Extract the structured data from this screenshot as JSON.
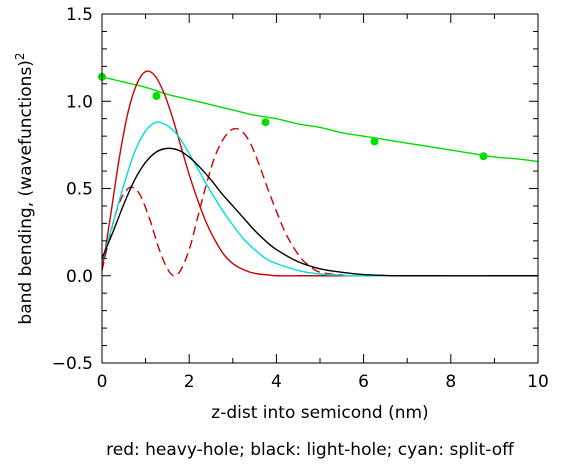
{
  "chart_data": {
    "type": "line",
    "xlabel": "z-dist into semicond (nm)",
    "ylabel_main": "band bending, (wavefunctions)",
    "ylabel_sup": "2",
    "caption": "red: heavy-hole; black: light-hole; cyan: split-off",
    "xlim": [
      0,
      10
    ],
    "ylim": [
      -0.5,
      1.5
    ],
    "x_ticks": [
      0,
      2,
      4,
      6,
      8,
      10
    ],
    "x_tick_labels": [
      "0",
      "2",
      "4",
      "6",
      "8",
      "10"
    ],
    "y_ticks": [
      -0.5,
      0.0,
      0.5,
      1.0,
      1.5
    ],
    "y_tick_labels": [
      "−0.5",
      "0.0",
      "0.5",
      "1.0",
      "1.5"
    ],
    "grid": false,
    "series": [
      {
        "color": "#00dd00",
        "dash": "solid",
        "x": [
          0,
          0.5,
          1,
          1.5,
          2,
          2.5,
          3,
          3.5,
          4,
          4.5,
          5,
          5.5,
          6,
          6.5,
          7,
          7.5,
          8,
          8.5,
          9,
          9.5,
          10
        ],
        "y": [
          1.14,
          1.11,
          1.08,
          1.04,
          1.01,
          0.98,
          0.95,
          0.92,
          0.9,
          0.87,
          0.85,
          0.82,
          0.8,
          0.78,
          0.76,
          0.74,
          0.72,
          0.7,
          0.68,
          0.67,
          0.655
        ]
      },
      {
        "color": "#cc0000",
        "dash": "solid",
        "x": [
          0,
          0.2,
          0.4,
          0.6,
          0.8,
          1.0,
          1.2,
          1.4,
          1.6,
          1.8,
          2.0,
          2.2,
          2.4,
          2.6,
          2.8,
          3.0,
          3.2,
          3.4,
          3.6,
          3.8,
          4.0,
          4.5,
          5.0,
          10
        ],
        "y": [
          0.03,
          0.35,
          0.68,
          0.94,
          1.1,
          1.17,
          1.15,
          1.06,
          0.92,
          0.75,
          0.58,
          0.43,
          0.3,
          0.2,
          0.12,
          0.07,
          0.04,
          0.02,
          0.01,
          0.005,
          0.0,
          0.0,
          0.0,
          0.0
        ]
      },
      {
        "color": "#cc0000",
        "dash": "dashed",
        "x": [
          0,
          0.2,
          0.4,
          0.6,
          0.75,
          0.9,
          1.1,
          1.3,
          1.5,
          1.65,
          1.8,
          2.0,
          2.2,
          2.4,
          2.6,
          2.8,
          3.0,
          3.2,
          3.4,
          3.6,
          3.8,
          4.0,
          4.2,
          4.4,
          4.6,
          4.8,
          5.0,
          5.5,
          6.0,
          10
        ],
        "y": [
          0.03,
          0.25,
          0.42,
          0.5,
          0.5,
          0.45,
          0.32,
          0.16,
          0.04,
          0.0,
          0.03,
          0.15,
          0.34,
          0.53,
          0.69,
          0.79,
          0.84,
          0.83,
          0.76,
          0.64,
          0.5,
          0.37,
          0.25,
          0.16,
          0.09,
          0.05,
          0.02,
          0.005,
          0.0,
          0.0
        ]
      },
      {
        "color": "#00dddd",
        "dash": "solid",
        "x": [
          0,
          0.25,
          0.5,
          0.75,
          1.0,
          1.25,
          1.5,
          1.75,
          2.0,
          2.25,
          2.5,
          2.75,
          3.0,
          3.25,
          3.5,
          3.75,
          4.0,
          4.5,
          5.0,
          5.5,
          6.0,
          10
        ],
        "y": [
          0.08,
          0.3,
          0.52,
          0.71,
          0.83,
          0.88,
          0.86,
          0.8,
          0.7,
          0.59,
          0.48,
          0.38,
          0.29,
          0.21,
          0.15,
          0.1,
          0.07,
          0.03,
          0.01,
          0.004,
          0.0,
          0.0
        ]
      },
      {
        "color": "#000000",
        "dash": "solid",
        "x": [
          0,
          0.25,
          0.5,
          0.75,
          1.0,
          1.25,
          1.5,
          1.75,
          2.0,
          2.25,
          2.5,
          2.75,
          3.0,
          3.25,
          3.5,
          3.75,
          4.0,
          4.5,
          5.0,
          5.5,
          6.0,
          6.5,
          7.0,
          10
        ],
        "y": [
          0.1,
          0.25,
          0.41,
          0.55,
          0.65,
          0.71,
          0.73,
          0.72,
          0.68,
          0.62,
          0.55,
          0.47,
          0.4,
          0.33,
          0.26,
          0.2,
          0.15,
          0.08,
          0.04,
          0.02,
          0.007,
          0.002,
          0.0,
          0.0
        ]
      }
    ],
    "markers": {
      "color": "#00dd00",
      "x": [
        0,
        1.25,
        3.75,
        6.25,
        8.75
      ],
      "y": [
        1.14,
        1.03,
        0.88,
        0.77,
        0.685
      ]
    }
  }
}
